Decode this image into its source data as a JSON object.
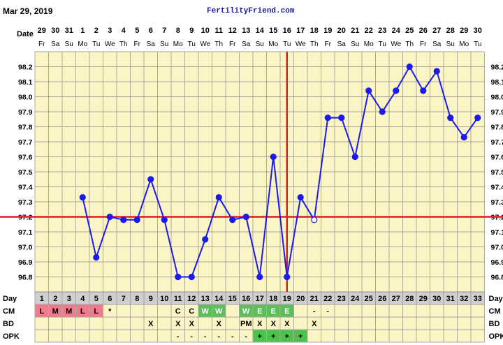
{
  "header": {
    "chart_date": "Mar 29, 2019",
    "site": "FertilityFriend.com"
  },
  "colors": {
    "background": "#ffffff",
    "plot_bg": "#fbf4c4",
    "grid": "#8c8c8c",
    "temp_line": "#1a1aee",
    "coverline": "#e01e1e",
    "ovulation_line": "#e01e1e",
    "day_row_bg": "#cfcfcf",
    "cm_menstrual": "#f07a8e",
    "cm_egg_white": "#5cbf5c",
    "opk_positive": "#4cc24c"
  },
  "labels": {
    "date_row": "Date",
    "day_row": "Day",
    "cm_row": "CM",
    "bd_row": "BD",
    "opk_row": "OPK"
  },
  "chart_data": {
    "type": "line",
    "title": "",
    "xlabel": "",
    "ylabel": "",
    "ylim": [
      96.7,
      98.3
    ],
    "y_ticks": [
      "98.2",
      "98.1",
      "98.0",
      "97.9",
      "97.8",
      "97.7",
      "97.6",
      "97.5",
      "97.4",
      "97.3",
      "97.2",
      "97.1",
      "97.0",
      "96.9",
      "96.8"
    ],
    "dates": [
      "29",
      "30",
      "31",
      "1",
      "2",
      "3",
      "4",
      "5",
      "6",
      "7",
      "8",
      "9",
      "10",
      "11",
      "12",
      "13",
      "14",
      "15",
      "16",
      "17",
      "18",
      "19",
      "20",
      "21",
      "22",
      "23",
      "24",
      "25",
      "26",
      "27",
      "28",
      "29",
      "30"
    ],
    "weekdays": [
      "Fr",
      "Sa",
      "Su",
      "Mo",
      "Tu",
      "We",
      "Th",
      "Fr",
      "Sa",
      "Su",
      "Mo",
      "Tu",
      "We",
      "Th",
      "Fr",
      "Sa",
      "Su",
      "Mo",
      "Tu",
      "We",
      "Th",
      "Fr",
      "Sa",
      "Su",
      "Mo",
      "Tu",
      "We",
      "Th",
      "Fr",
      "Sa",
      "Su",
      "Mo",
      "Tu"
    ],
    "days": [
      "1",
      "2",
      "3",
      "4",
      "5",
      "6",
      "7",
      "8",
      "9",
      "10",
      "11",
      "12",
      "13",
      "14",
      "15",
      "16",
      "17",
      "18",
      "19",
      "20",
      "21",
      "22",
      "23",
      "24",
      "25",
      "26",
      "27",
      "28",
      "29",
      "30",
      "31",
      "32",
      "33"
    ],
    "temperatures": [
      null,
      null,
      null,
      97.33,
      96.93,
      97.2,
      97.18,
      97.18,
      97.45,
      97.18,
      96.8,
      96.8,
      97.05,
      97.33,
      97.18,
      97.2,
      96.8,
      97.6,
      96.8,
      97.33,
      97.18,
      97.86,
      97.86,
      97.6,
      98.04,
      97.9,
      98.04,
      98.2,
      98.04,
      98.17,
      97.86,
      97.73,
      97.86
    ],
    "open_points": [
      21
    ],
    "coverline": 97.2,
    "ovulation_day": 19,
    "grid": true,
    "cm": [
      "L",
      "M",
      "M",
      "L",
      "L",
      "*",
      "",
      "",
      "",
      "",
      "C",
      "C",
      "W",
      "W",
      "",
      "W",
      "E",
      "E",
      "E",
      "",
      "-",
      "-",
      "",
      "",
      "",
      "",
      "",
      "",
      "",
      "",
      "",
      "",
      ""
    ],
    "bd": [
      "",
      "",
      "",
      "",
      "",
      "",
      "",
      "",
      "X",
      "",
      "X",
      "X",
      "",
      "X",
      "",
      "PM",
      "X",
      "X",
      "X",
      "",
      "X",
      "",
      "",
      "",
      "",
      "",
      "",
      "",
      "",
      "",
      "",
      "",
      ""
    ],
    "opk": [
      "",
      "",
      "",
      "",
      "",
      "",
      "",
      "",
      "",
      "",
      "-",
      "-",
      "-",
      "-",
      "-",
      "-",
      "+",
      "+",
      "+",
      "+",
      "",
      "",
      "",
      "",
      "",
      "",
      "",
      "",
      "",
      "",
      "",
      "",
      ""
    ]
  }
}
